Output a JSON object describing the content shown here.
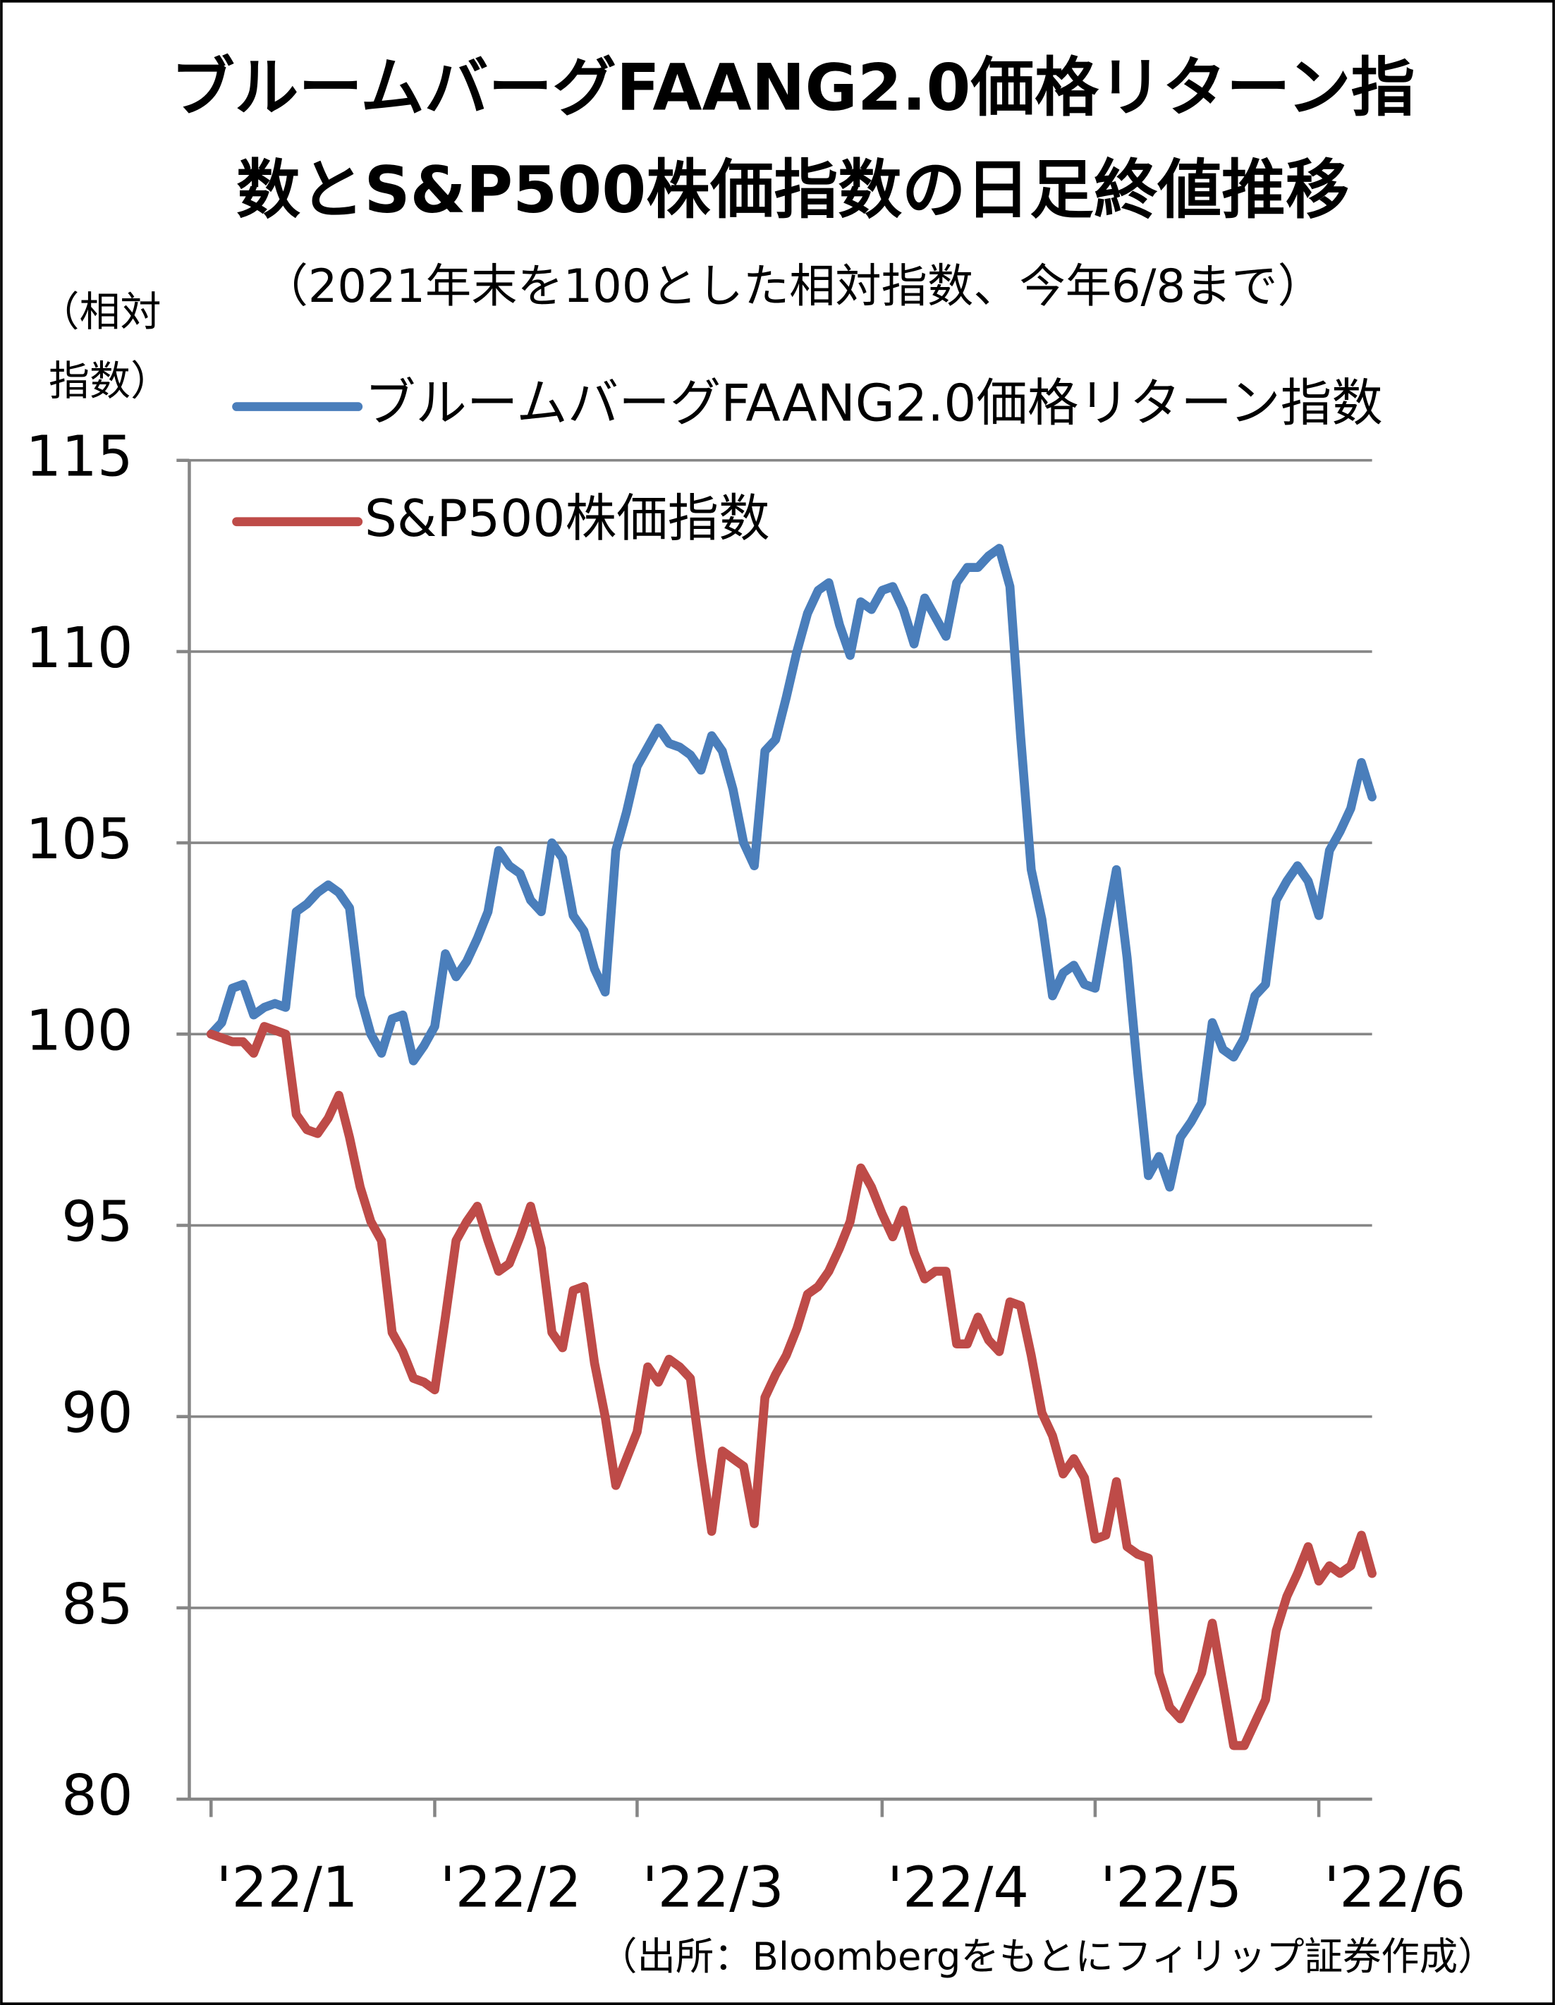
{
  "chart_data": {
    "type": "line",
    "title": [
      "ブルームバーグFAANG2.0価格リターン指",
      "数とS&P500株価指数の日足終値推移"
    ],
    "subtitle": "（2021年末を100とした相対指数、今年6/8まで）",
    "ylabel": [
      "（相対",
      "指数）"
    ],
    "source": "（出所：Bloombergをもとにフィリップ証券作成）",
    "categories": [
      "'22/1",
      null,
      null,
      null,
      null,
      null,
      null,
      null,
      null,
      null,
      null,
      null,
      null,
      null,
      null,
      null,
      null,
      null,
      null,
      null,
      null,
      "'22/2",
      null,
      null,
      null,
      null,
      null,
      null,
      null,
      null,
      null,
      null,
      null,
      null,
      null,
      null,
      null,
      null,
      null,
      null,
      "'22/3",
      null,
      null,
      null,
      null,
      null,
      null,
      null,
      null,
      null,
      null,
      null,
      null,
      null,
      null,
      null,
      null,
      null,
      null,
      null,
      null,
      null,
      null,
      "'22/4",
      null,
      null,
      null,
      null,
      null,
      null,
      null,
      null,
      null,
      null,
      null,
      null,
      null,
      null,
      null,
      null,
      null,
      null,
      null,
      "'22/5",
      null,
      null,
      null,
      null,
      null,
      null,
      null,
      null,
      null,
      null,
      null,
      null,
      null,
      null,
      null,
      null,
      null,
      null,
      null,
      null,
      "'22/6",
      null,
      null,
      null,
      null,
      null
    ],
    "series": [
      {
        "name": "ブルームバーグFAANG2.0価格リターン指数",
        "color": "#4a7ebb",
        "values": [
          100.0,
          100.3,
          101.2,
          101.3,
          100.5,
          100.7,
          100.8,
          100.7,
          103.2,
          103.4,
          103.7,
          103.9,
          103.7,
          103.3,
          101.0,
          100.0,
          99.5,
          100.4,
          100.5,
          99.3,
          99.7,
          100.2,
          102.1,
          101.5,
          101.9,
          102.5,
          103.2,
          104.8,
          104.4,
          104.2,
          103.5,
          103.2,
          105.0,
          104.6,
          103.1,
          102.7,
          101.7,
          101.1,
          104.8,
          105.8,
          107.0,
          107.5,
          108.0,
          107.6,
          107.5,
          107.3,
          106.9,
          107.8,
          107.4,
          106.4,
          105.0,
          104.4,
          107.4,
          107.7,
          108.8,
          110.0,
          111.0,
          111.6,
          111.8,
          110.7,
          109.9,
          111.3,
          111.1,
          111.6,
          111.7,
          111.1,
          110.2,
          111.4,
          110.9,
          110.4,
          111.8,
          112.2,
          112.2,
          112.5,
          112.7,
          111.7,
          107.8,
          104.3,
          103.0,
          101.0,
          101.6,
          101.8,
          101.3,
          101.2,
          102.8,
          104.3,
          102.0,
          99.0,
          96.3,
          96.8,
          96.0,
          97.3,
          97.7,
          98.2,
          100.3,
          99.6,
          99.4,
          99.9,
          101.0,
          101.3,
          103.5,
          104.0,
          104.4,
          104.0,
          103.1,
          104.8,
          105.3,
          105.9,
          107.1,
          106.2
        ]
      },
      {
        "name": "S&P500株価指数",
        "color": "#be4b48",
        "values": [
          100.0,
          99.9,
          99.8,
          99.8,
          99.5,
          100.2,
          100.1,
          100.0,
          97.9,
          97.5,
          97.4,
          97.8,
          98.4,
          97.3,
          96.0,
          95.1,
          94.6,
          92.2,
          91.7,
          91.0,
          90.9,
          90.7,
          92.6,
          94.6,
          95.1,
          95.5,
          94.6,
          93.8,
          94.0,
          94.7,
          95.5,
          94.4,
          92.2,
          91.8,
          93.3,
          93.4,
          91.4,
          90.0,
          88.2,
          88.9,
          89.6,
          91.3,
          90.9,
          91.5,
          91.3,
          91.0,
          88.9,
          87.0,
          89.1,
          88.9,
          88.7,
          87.2,
          90.5,
          91.1,
          91.6,
          92.3,
          93.2,
          93.4,
          93.8,
          94.4,
          95.1,
          96.5,
          96.0,
          95.3,
          94.7,
          95.4,
          94.3,
          93.6,
          93.8,
          93.8,
          91.9,
          91.9,
          92.6,
          92.0,
          91.7,
          93.0,
          92.9,
          91.6,
          90.1,
          89.5,
          88.5,
          88.9,
          88.4,
          86.8,
          86.9,
          88.3,
          86.6,
          86.4,
          86.3,
          83.3,
          82.4,
          82.1,
          82.7,
          83.3,
          84.6,
          83.0,
          81.4,
          81.4,
          82.0,
          82.6,
          84.4,
          85.3,
          85.9,
          86.6,
          85.7,
          86.1,
          85.9,
          86.1,
          86.9,
          85.9
        ]
      }
    ],
    "ylim": [
      80,
      115
    ],
    "yticks": [
      80,
      85,
      90,
      95,
      100,
      105,
      110,
      115
    ],
    "grid": true,
    "legend": "top-left"
  }
}
